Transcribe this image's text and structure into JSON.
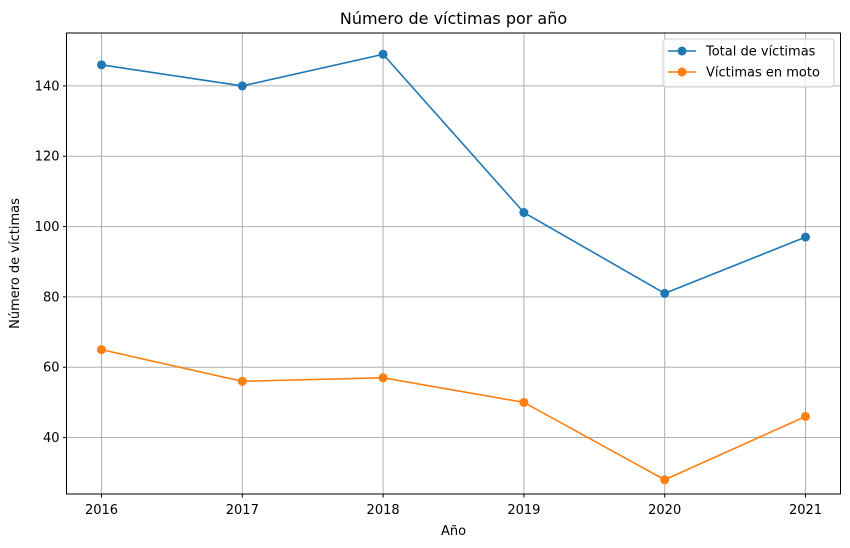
{
  "chart_data": {
    "type": "line",
    "title": "Número de víctimas por año",
    "xlabel": "Año",
    "ylabel": "Número de víctimas",
    "x": [
      "2016",
      "2017",
      "2018",
      "2019",
      "2020",
      "2021"
    ],
    "yticks": [
      "40",
      "60",
      "80",
      "100",
      "120",
      "140"
    ],
    "ylim": [
      23.95,
      155.05
    ],
    "grid": true,
    "legend_position": "top-right",
    "series": [
      {
        "name": "Total de víctimas",
        "values": [
          146,
          140,
          149,
          104,
          81,
          97
        ],
        "color": "#1f77b4"
      },
      {
        "name": "Víctimas en moto",
        "values": [
          65,
          56,
          57,
          50,
          28,
          46
        ],
        "color": "#ff7f0e"
      }
    ]
  }
}
